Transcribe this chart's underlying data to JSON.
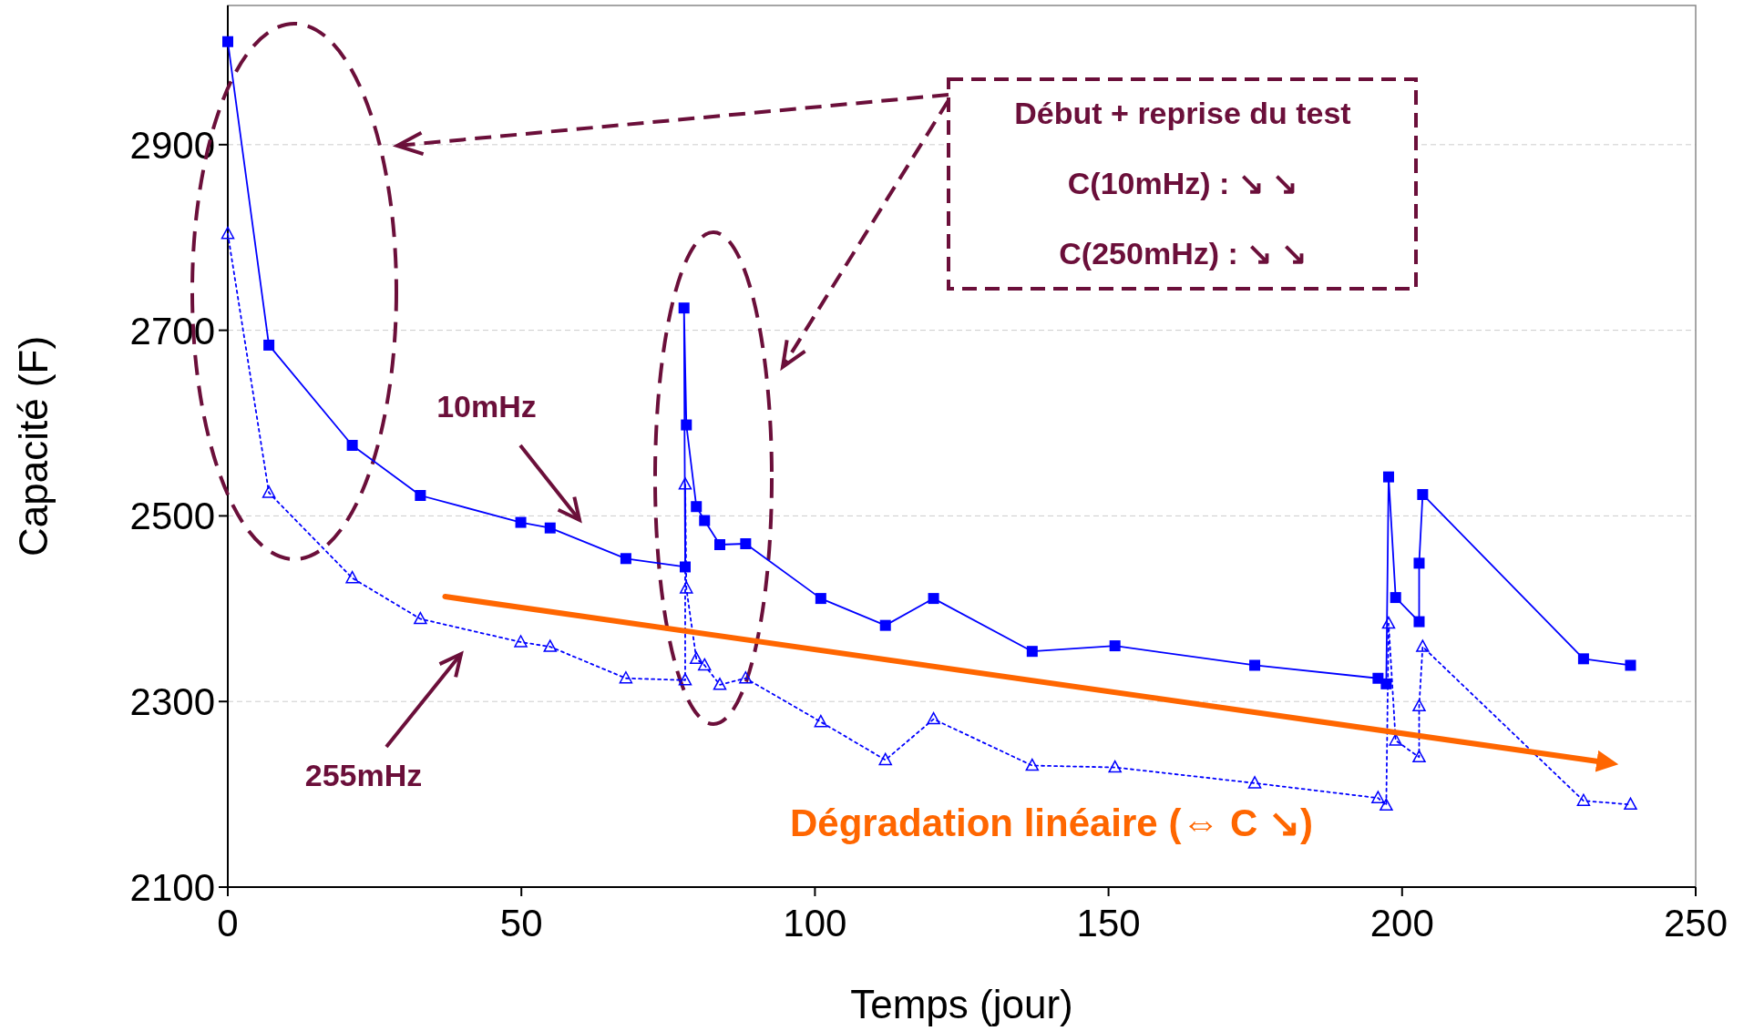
{
  "chart_data": {
    "type": "line",
    "xlabel": "Temps (jour)",
    "ylabel": "Capacité (F)",
    "xlim": [
      0,
      250
    ],
    "xticks": [
      0,
      50,
      100,
      150,
      200,
      250
    ],
    "ylim": [
      2100,
      3050
    ],
    "yticks": [
      2100,
      2300,
      2500,
      2700,
      2900
    ],
    "grid": "y",
    "series": [
      {
        "color": "#0000ff",
        "marker": "square",
        "line_style": "solid",
        "x": [
          0,
          7,
          21.2,
          32.8,
          49.9,
          54.9,
          67.8,
          77.9,
          77.7,
          78.1,
          79.8,
          81.2,
          83.8,
          88.2,
          101,
          112,
          120.2,
          137,
          151.1,
          174.9,
          195.9,
          197.3,
          197.7,
          198.9,
          202.9,
          202.9,
          203.5,
          230.9,
          238.9
        ],
        "values": [
          3011,
          2684,
          2576,
          2522,
          2493,
          2487,
          2454,
          2445,
          2724,
          2598,
          2510,
          2495,
          2469,
          2470,
          2411,
          2382,
          2411,
          2354,
          2360,
          2339,
          2325,
          2319,
          2542,
          2412,
          2386,
          2449,
          2523,
          2346,
          2339
        ]
      },
      {
        "color": "#0000ff",
        "marker": "triangle",
        "line_style": "dotted",
        "x": [
          0,
          7,
          21.2,
          32.8,
          49.9,
          54.9,
          67.8,
          77.9,
          77.9,
          78.1,
          79.8,
          81.2,
          83.8,
          88.2,
          101,
          112,
          120.2,
          137,
          151.1,
          174.9,
          195.9,
          197.3,
          197.7,
          198.9,
          202.9,
          202.9,
          203.5,
          230.9,
          238.9
        ],
        "values": [
          2804,
          2525,
          2433,
          2389,
          2364,
          2359,
          2325,
          2323,
          2534,
          2422,
          2346,
          2339,
          2318,
          2325,
          2278,
          2237,
          2281,
          2231,
          2229,
          2212,
          2196,
          2188,
          2384,
          2258,
          2240,
          2295,
          2359,
          2193,
          2189
        ]
      },
      {
        "type": "line",
        "color": "#ff6600",
        "marker": "none",
        "line_style": "solid",
        "x": [
          37,
          235
        ],
        "values": [
          2413,
          2234
        ]
      }
    ],
    "annotations": [
      "10mHz",
      "255mHz",
      "Début + reprise du test",
      "C(10mHz) : ↘ ↘",
      "C(250mHz) : ↘ ↘",
      "Dégradation linéaire (⇔ C ↘)"
    ]
  }
}
